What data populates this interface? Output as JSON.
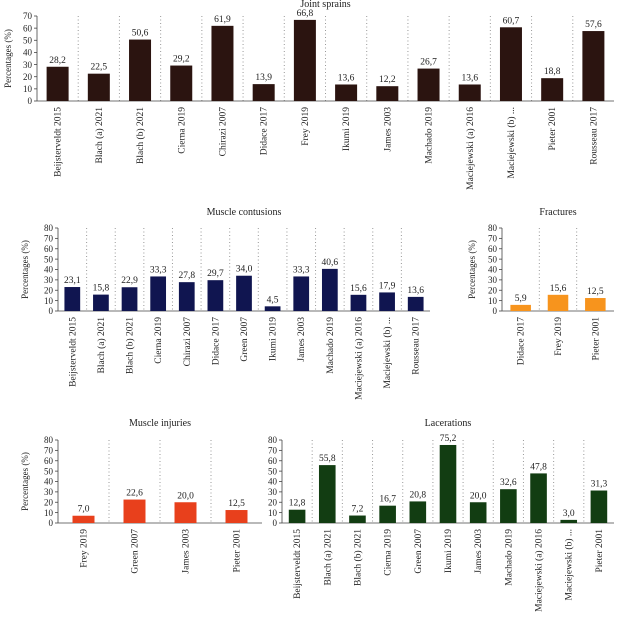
{
  "chart_data": [
    {
      "type": "bar",
      "title": "Joint sprains",
      "ylabel": "Percentages (%)",
      "ylim": [
        0,
        70
      ],
      "yticks": [
        0,
        10,
        20,
        30,
        40,
        50,
        60,
        70
      ],
      "color": "#2b1410",
      "categories": [
        "Beijsterveldt 2015",
        "Blach (a) 2021",
        "Blach (b) 2021",
        "Cierna 2019",
        "Chirazi 2007",
        "Didace 2017",
        "Frey 2019",
        "Ikumi 2019",
        "James 2003",
        "Machado 2019",
        "Maciejewski (a) 2016",
        "Maciejewski (b) ...",
        "Pieter 2001",
        "Rousseau 2017"
      ],
      "values": [
        28.2,
        22.5,
        50.6,
        29.2,
        61.9,
        13.9,
        66.8,
        13.6,
        12.2,
        26.7,
        13.6,
        60.7,
        18.8,
        57.6
      ],
      "labels": [
        "28,2",
        "22,5",
        "50,6",
        "29,2",
        "61,9",
        "13,9",
        "66,8",
        "13,6",
        "12,2",
        "26,7",
        "13,6",
        "60,7",
        "18,8",
        "57,6"
      ]
    },
    {
      "type": "bar",
      "title": "Muscle contusions",
      "ylabel": "Percentages (%)",
      "ylim": [
        0,
        80
      ],
      "yticks": [
        0,
        10,
        20,
        30,
        40,
        50,
        60,
        70,
        80
      ],
      "color": "#101550",
      "categories": [
        "Beijsterveldt 2015",
        "Blach (a) 2021",
        "Blach (b) 2021",
        "Cierna 2019",
        "Chirazi 2007",
        "Didace 2017",
        "Green 2007",
        "Ikumi 2019",
        "James 2003",
        "Machado 2019",
        "Maciejewski (a) 2016",
        "Maciejewski (b) ...",
        "Rousseau 2017"
      ],
      "values": [
        23.1,
        15.8,
        22.9,
        33.3,
        27.8,
        29.7,
        34.0,
        4.5,
        33.3,
        40.6,
        15.6,
        17.9,
        13.6
      ],
      "labels": [
        "23,1",
        "15,8",
        "22,9",
        "33,3",
        "27,8",
        "29,7",
        "34,0",
        "4,5",
        "33,3",
        "40,6",
        "15,6",
        "17,9",
        "13,6"
      ]
    },
    {
      "type": "bar",
      "title": "Fractures",
      "ylabel": "Percentages (%)",
      "ylim": [
        0,
        80
      ],
      "yticks": [
        0,
        10,
        20,
        30,
        40,
        50,
        60,
        70,
        80
      ],
      "color": "#f7941d",
      "categories": [
        "Didace 2017",
        "Frey 2019",
        "Pieter 2001"
      ],
      "values": [
        5.9,
        15.6,
        12.5
      ],
      "labels": [
        "5,9",
        "15,6",
        "12,5"
      ]
    },
    {
      "type": "bar",
      "title": "Muscle injuries",
      "ylabel": "Percentages (%)",
      "ylim": [
        0,
        80
      ],
      "yticks": [
        0,
        10,
        20,
        30,
        40,
        50,
        60,
        70,
        80
      ],
      "color": "#e8401c",
      "categories": [
        "Frey 2019",
        "Green 2007",
        "James 2003",
        "Pieter 2001"
      ],
      "values": [
        7.0,
        22.6,
        20.0,
        12.5
      ],
      "labels": [
        "7,0",
        "22,6",
        "20,0",
        "12,5"
      ]
    },
    {
      "type": "bar",
      "title": "Lacerations",
      "ylabel": "",
      "ylim": [
        0,
        80
      ],
      "yticks": [
        0,
        10,
        20,
        30,
        40,
        50,
        60,
        70,
        80
      ],
      "color": "#123d12",
      "categories": [
        "Beijsterveldt 2015",
        "Blach (a) 2021",
        "Blach (b) 2021",
        "Cierna 2019",
        "Green 2007",
        "Ikumi 2019",
        "James 2003",
        "Machado 2019",
        "Maciejewski (a) 2016",
        "Maciejewski (b) ...",
        "Pieter 2001"
      ],
      "values": [
        12.8,
        55.8,
        7.2,
        16.7,
        20.8,
        75.2,
        20.0,
        32.6,
        47.8,
        3.0,
        31.3
      ],
      "labels": [
        "12,8",
        "55,8",
        "7,2",
        "16,7",
        "20,8",
        "75,2",
        "20,0",
        "32,6",
        "47,8",
        "3,0",
        "31,3"
      ]
    }
  ]
}
